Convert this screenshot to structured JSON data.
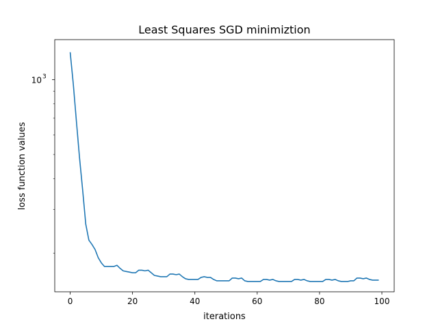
{
  "chart_data": {
    "type": "line",
    "title": "Least Squares SGD minimiztion",
    "xlabel": "iterations",
    "ylabel": "loss function values",
    "yscale": "log",
    "xlim": [
      -4.95,
      103.95
    ],
    "ylim": [
      140,
      1450
    ],
    "x_ticks": [
      0,
      20,
      40,
      60,
      80,
      100
    ],
    "y_major_ticks": [
      1000
    ],
    "y_major_tick_labels": [
      {
        "base": "10",
        "exp": "3"
      }
    ],
    "y_minor_ticks": [
      200,
      300,
      400,
      500,
      600,
      700,
      800,
      900
    ],
    "grid": false,
    "legend": null,
    "series": [
      {
        "color": "#1f77b4",
        "x": [
          0,
          1,
          2,
          3,
          4,
          5,
          6,
          7,
          8,
          9,
          10,
          11,
          12,
          13,
          14,
          15,
          16,
          17,
          18,
          19,
          20,
          21,
          22,
          23,
          24,
          25,
          26,
          27,
          28,
          29,
          30,
          31,
          32,
          33,
          34,
          35,
          36,
          37,
          38,
          39,
          40,
          41,
          42,
          43,
          44,
          45,
          46,
          47,
          48,
          49,
          50,
          51,
          52,
          53,
          54,
          55,
          56,
          57,
          58,
          59,
          60,
          61,
          62,
          63,
          64,
          65,
          66,
          67,
          68,
          69,
          70,
          71,
          72,
          73,
          74,
          75,
          76,
          77,
          78,
          79,
          80,
          81,
          82,
          83,
          84,
          85,
          86,
          87,
          88,
          89,
          90,
          91,
          92,
          93,
          94,
          95,
          96,
          97,
          98,
          99
        ],
        "values": [
          1290,
          960,
          680,
          485,
          360,
          262,
          226,
          217,
          207,
          192,
          183,
          177,
          177,
          177,
          177,
          179,
          174,
          170,
          169,
          168,
          167,
          167,
          171,
          171,
          170,
          171,
          167,
          163,
          162,
          161,
          161,
          161,
          165,
          165,
          164,
          165,
          161,
          158,
          157,
          157,
          157,
          157,
          160,
          161,
          160,
          160,
          157,
          155,
          155,
          155,
          155,
          155,
          159,
          159,
          158,
          159,
          155,
          154,
          154,
          154,
          154,
          154,
          157,
          157,
          156,
          157,
          155,
          154,
          154,
          154,
          154,
          154,
          157,
          157,
          156,
          157,
          155,
          154,
          154,
          154,
          154,
          154,
          157,
          157,
          156,
          157,
          155,
          154,
          154,
          154,
          155,
          155,
          159,
          159,
          158,
          159,
          157,
          156,
          156,
          156
        ]
      }
    ]
  }
}
